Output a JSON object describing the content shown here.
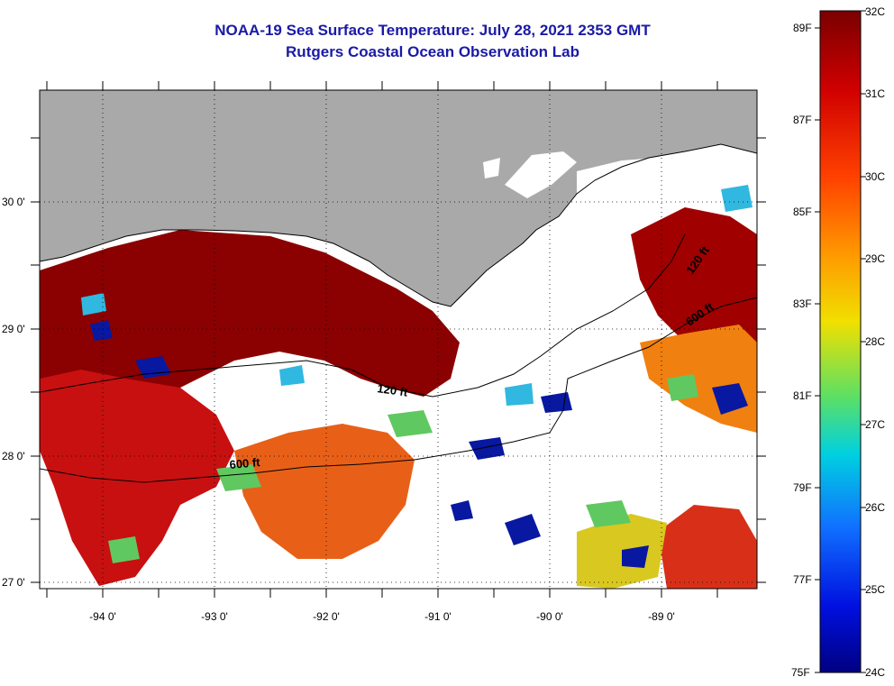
{
  "title": "NOAA-19 Sea Surface Temperature:  July 28, 2021 2353 GMT",
  "subtitle": "Rutgers Coastal Ocean Observation Lab",
  "axes": {
    "lat_labels": [
      "30 0'",
      "29 0'",
      "28 0'",
      "27 0'"
    ],
    "lon_labels": [
      "-94 0'",
      "-93 0'",
      "-92 0'",
      "-91 0'",
      "-90 0'",
      "-89 0'"
    ]
  },
  "contours": {
    "c120_a": "120 ft",
    "c600_a": "600 ft",
    "c120_b": "120 ft",
    "c600_b": "600 ft"
  },
  "colorbar": {
    "celsius": [
      "32C",
      "31C",
      "30C",
      "29C",
      "28C",
      "27C",
      "26C",
      "25C",
      "24C"
    ],
    "fahrenheit": [
      "89F",
      "87F",
      "85F",
      "83F",
      "81F",
      "79F",
      "77F",
      "75F"
    ]
  },
  "colors": {
    "land": "#a9a9a9",
    "nodata": "#ffffff",
    "title": "#1a1aa6",
    "sst_warm": "#8b0000",
    "sst_hot": "#d01818",
    "sst_orange": "#f07010",
    "sst_yellow": "#e8d020",
    "sst_green": "#60d060",
    "sst_cyan": "#30c0e0",
    "sst_blue": "#0818a0"
  }
}
